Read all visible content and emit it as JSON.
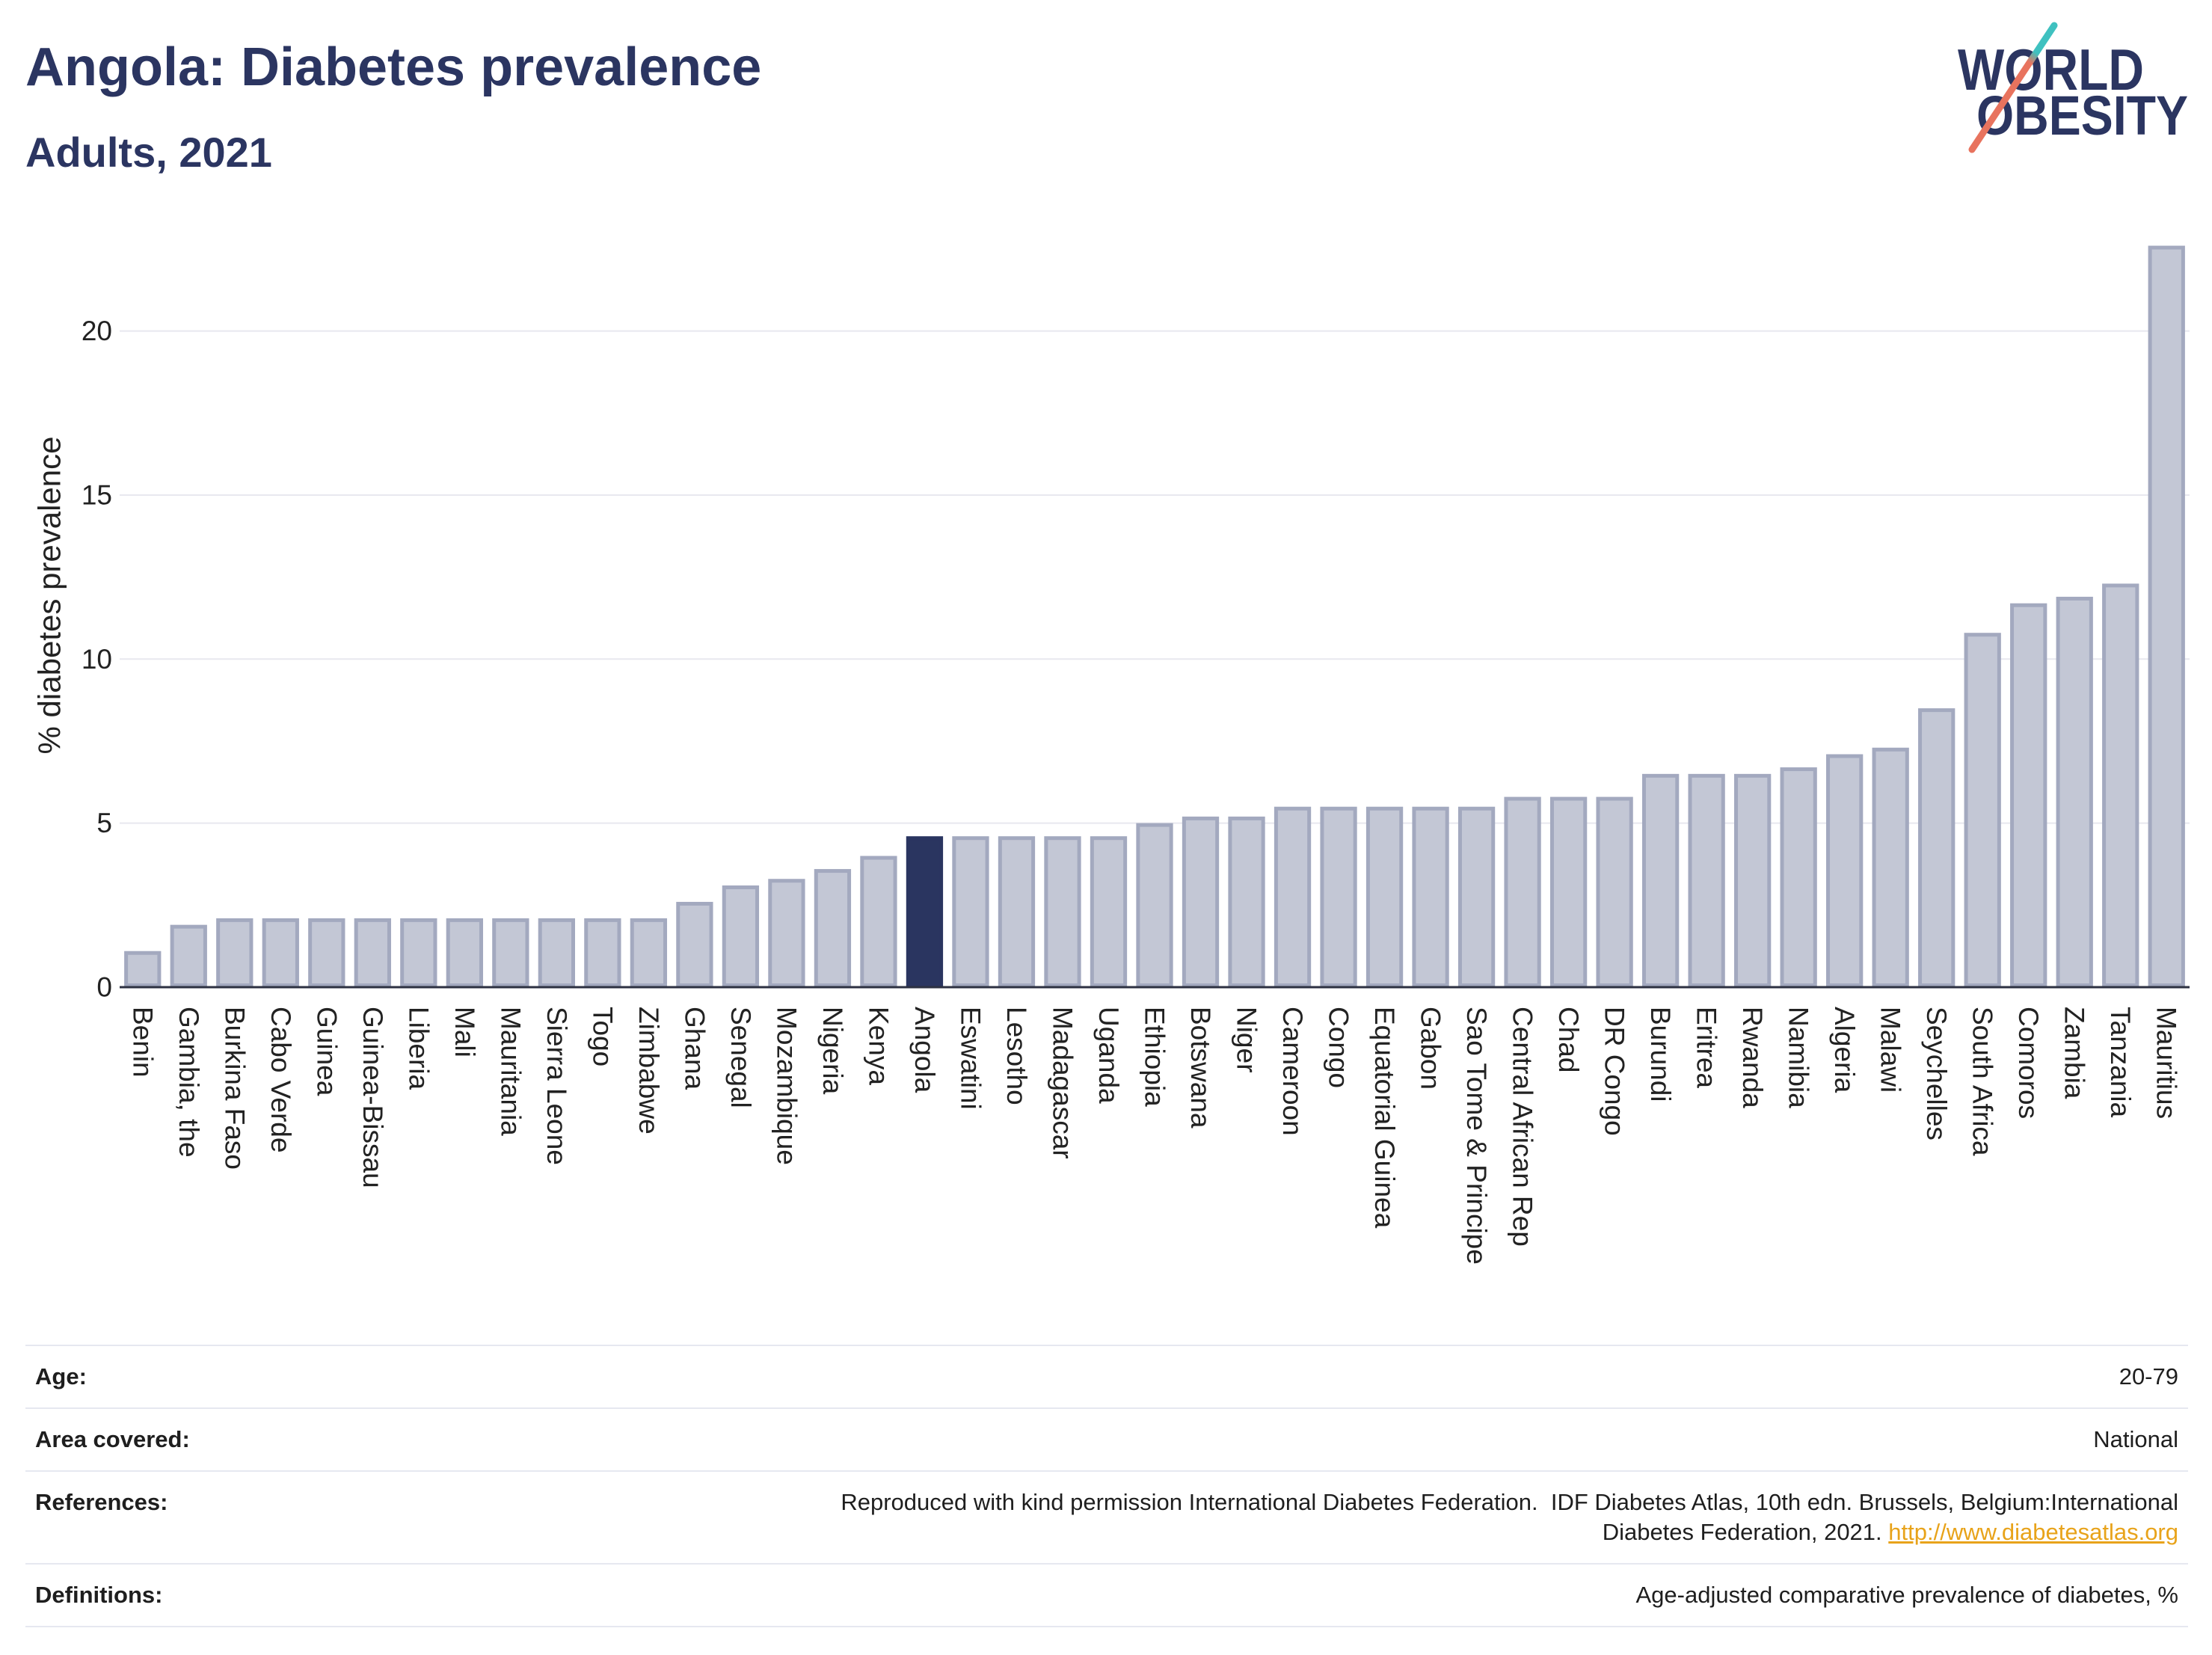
{
  "logo": {
    "line1": "WORLD",
    "line2": "OBESITY"
  },
  "chart_data": {
    "type": "bar",
    "title": "Angola: Diabetes prevalence",
    "subtitle": "Adults, 2021",
    "ylabel": "% diabetes prevalence",
    "ylim": [
      0,
      23
    ],
    "yticks": [
      0,
      5,
      10,
      15,
      20
    ],
    "grid": true,
    "highlight_index": 17,
    "categories": [
      "Benin",
      "Gambia, the",
      "Burkina Faso",
      "Cabo Verde",
      "Guinea",
      "Guinea-Bissau",
      "Liberia",
      "Mali",
      "Mauritania",
      "Sierra Leone",
      "Togo",
      "Zimbabwe",
      "Ghana",
      "Senegal",
      "Mozambique",
      "Nigeria",
      "Kenya",
      "Angola",
      "Eswatini",
      "Lesotho",
      "Madagascar",
      "Uganda",
      "Ethiopia",
      "Botswana",
      "Niger",
      "Cameroon",
      "Congo",
      "Equatorial Guinea",
      "Gabon",
      "Sao Tome & Principe",
      "Central African Rep",
      "Chad",
      "DR Congo",
      "Burundi",
      "Eritrea",
      "Rwanda",
      "Namibia",
      "Algeria",
      "Malawi",
      "Seychelles",
      "South Africa",
      "Comoros",
      "Zambia",
      "Tanzania",
      "Mauritius"
    ],
    "values": [
      1.1,
      1.9,
      2.1,
      2.1,
      2.1,
      2.1,
      2.1,
      2.1,
      2.1,
      2.1,
      2.1,
      2.1,
      2.6,
      3.1,
      3.3,
      3.6,
      4.0,
      4.6,
      4.6,
      4.6,
      4.6,
      4.6,
      5.0,
      5.2,
      5.2,
      5.5,
      5.5,
      5.5,
      5.5,
      5.5,
      5.8,
      5.8,
      5.8,
      6.5,
      6.5,
      6.5,
      6.7,
      7.1,
      7.3,
      8.5,
      10.8,
      11.7,
      11.9,
      12.3,
      22.6
    ],
    "colors": {
      "bar": "#c3c7d5",
      "bar_border": "#a3a9bf",
      "highlight": "#2a3560",
      "grid": "#e8e8ef",
      "axis": "#2d3142",
      "title": "#2b3561",
      "link": "#e8a31a"
    }
  },
  "footer": {
    "age": {
      "label": "Age:",
      "value": "20-79"
    },
    "area": {
      "label": "Area covered:",
      "value": "National"
    },
    "references": {
      "label": "References:",
      "line1": "Reproduced with kind permission International Diabetes Federation.  IDF Diabetes Atlas, 10th edn. Brussels, Belgium:International",
      "line2": "Diabetes Federation, 2021.",
      "link": "http://www.diabetesatlas.org"
    },
    "definitions": {
      "label": "Definitions:",
      "value": "Age-adjusted comparative prevalence of diabetes, %"
    }
  }
}
